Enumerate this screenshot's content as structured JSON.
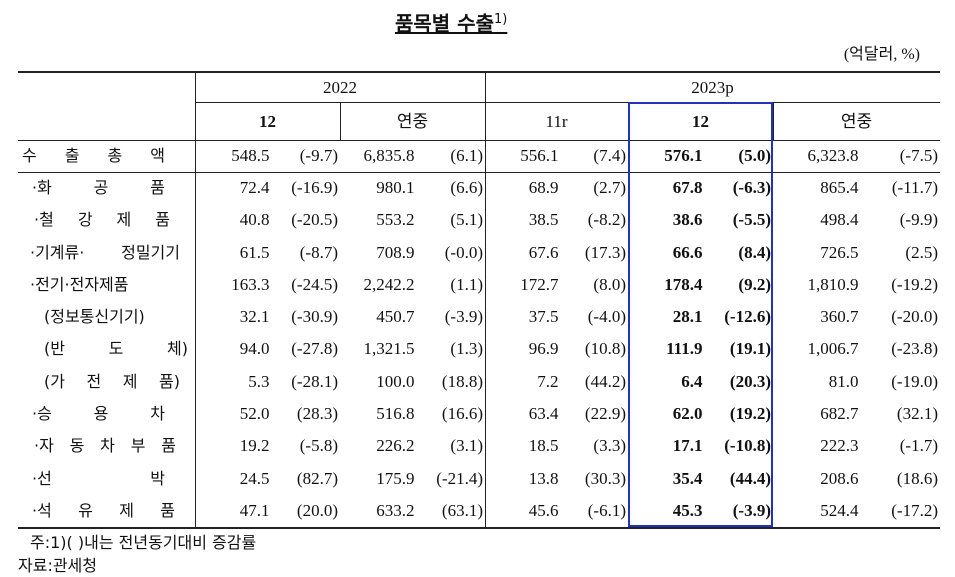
{
  "title": "품목별 수출",
  "title_note": "1)",
  "unit": "(억달러, %)",
  "table": {
    "groups": [
      "2022",
      "2023p"
    ],
    "columns": [
      "12",
      "연중",
      "11r",
      "12",
      "연중"
    ],
    "rows": [
      {
        "label": "수 출 총 액",
        "cells": [
          [
            "548.5",
            "(-9.7)"
          ],
          [
            "6,835.8",
            "(6.1)"
          ],
          [
            "556.1",
            "(7.4)"
          ],
          [
            "576.1",
            "(5.0)"
          ],
          [
            "6,323.8",
            "(-7.5)"
          ]
        ]
      },
      {
        "label": "·화 공 품",
        "cells": [
          [
            "72.4",
            "(-16.9)"
          ],
          [
            "980.1",
            "(6.6)"
          ],
          [
            "68.9",
            "(2.7)"
          ],
          [
            "67.8",
            "(-6.3)"
          ],
          [
            "865.4",
            "(-11.7)"
          ]
        ]
      },
      {
        "label": "·철 강 제 품",
        "cells": [
          [
            "40.8",
            "(-20.5)"
          ],
          [
            "553.2",
            "(5.1)"
          ],
          [
            "38.5",
            "(-8.2)"
          ],
          [
            "38.6",
            "(-5.5)"
          ],
          [
            "498.4",
            "(-9.9)"
          ]
        ]
      },
      {
        "label": "·기계류· 정밀기기",
        "cells": [
          [
            "61.5",
            "(-8.7)"
          ],
          [
            "708.9",
            "(-0.0)"
          ],
          [
            "67.6",
            "(17.3)"
          ],
          [
            "66.6",
            "(8.4)"
          ],
          [
            "726.5",
            "(2.5)"
          ]
        ]
      },
      {
        "label": "·전기·전자제품",
        "cells": [
          [
            "163.3",
            "(-24.5)"
          ],
          [
            "2,242.2",
            "(1.1)"
          ],
          [
            "172.7",
            "(8.0)"
          ],
          [
            "178.4",
            "(9.2)"
          ],
          [
            "1,810.9",
            "(-19.2)"
          ]
        ]
      },
      {
        "label": "(정보통신기기)",
        "cells": [
          [
            "32.1",
            "(-30.9)"
          ],
          [
            "450.7",
            "(-3.9)"
          ],
          [
            "37.5",
            "(-4.0)"
          ],
          [
            "28.1",
            "(-12.6)"
          ],
          [
            "360.7",
            "(-20.0)"
          ]
        ]
      },
      {
        "label": "(반 도 체)",
        "cells": [
          [
            "94.0",
            "(-27.8)"
          ],
          [
            "1,321.5",
            "(1.3)"
          ],
          [
            "96.9",
            "(10.8)"
          ],
          [
            "111.9",
            "(19.1)"
          ],
          [
            "1,006.7",
            "(-23.8)"
          ]
        ]
      },
      {
        "label": "(가 전 제 품)",
        "cells": [
          [
            "5.3",
            "(-28.1)"
          ],
          [
            "100.0",
            "(18.8)"
          ],
          [
            "7.2",
            "(44.2)"
          ],
          [
            "6.4",
            "(20.3)"
          ],
          [
            "81.0",
            "(-19.0)"
          ]
        ]
      },
      {
        "label": "·승 용 차",
        "cells": [
          [
            "52.0",
            "(28.3)"
          ],
          [
            "516.8",
            "(16.6)"
          ],
          [
            "63.4",
            "(22.9)"
          ],
          [
            "62.0",
            "(19.2)"
          ],
          [
            "682.7",
            "(32.1)"
          ]
        ]
      },
      {
        "label": "·자 동 차 부 품",
        "cells": [
          [
            "19.2",
            "(-5.8)"
          ],
          [
            "226.2",
            "(3.1)"
          ],
          [
            "18.5",
            "(3.3)"
          ],
          [
            "17.1",
            "(-10.8)"
          ],
          [
            "222.3",
            "(-1.7)"
          ]
        ]
      },
      {
        "label": "·선 박",
        "cells": [
          [
            "24.5",
            "(82.7)"
          ],
          [
            "175.9",
            "(-21.4)"
          ],
          [
            "13.8",
            "(30.3)"
          ],
          [
            "35.4",
            "(44.4)"
          ],
          [
            "208.6",
            "(18.6)"
          ]
        ]
      },
      {
        "label": "·석 유 제 품",
        "cells": [
          [
            "47.1",
            "(20.0)"
          ],
          [
            "633.2",
            "(63.1)"
          ],
          [
            "45.6",
            "(-6.1)"
          ],
          [
            "45.3",
            "(-3.9)"
          ],
          [
            "524.4",
            "(-17.2)"
          ]
        ]
      }
    ]
  },
  "notes": [
    "주:1)(  )내는 전년동기대비 증감률",
    "자료:관세청"
  ]
}
